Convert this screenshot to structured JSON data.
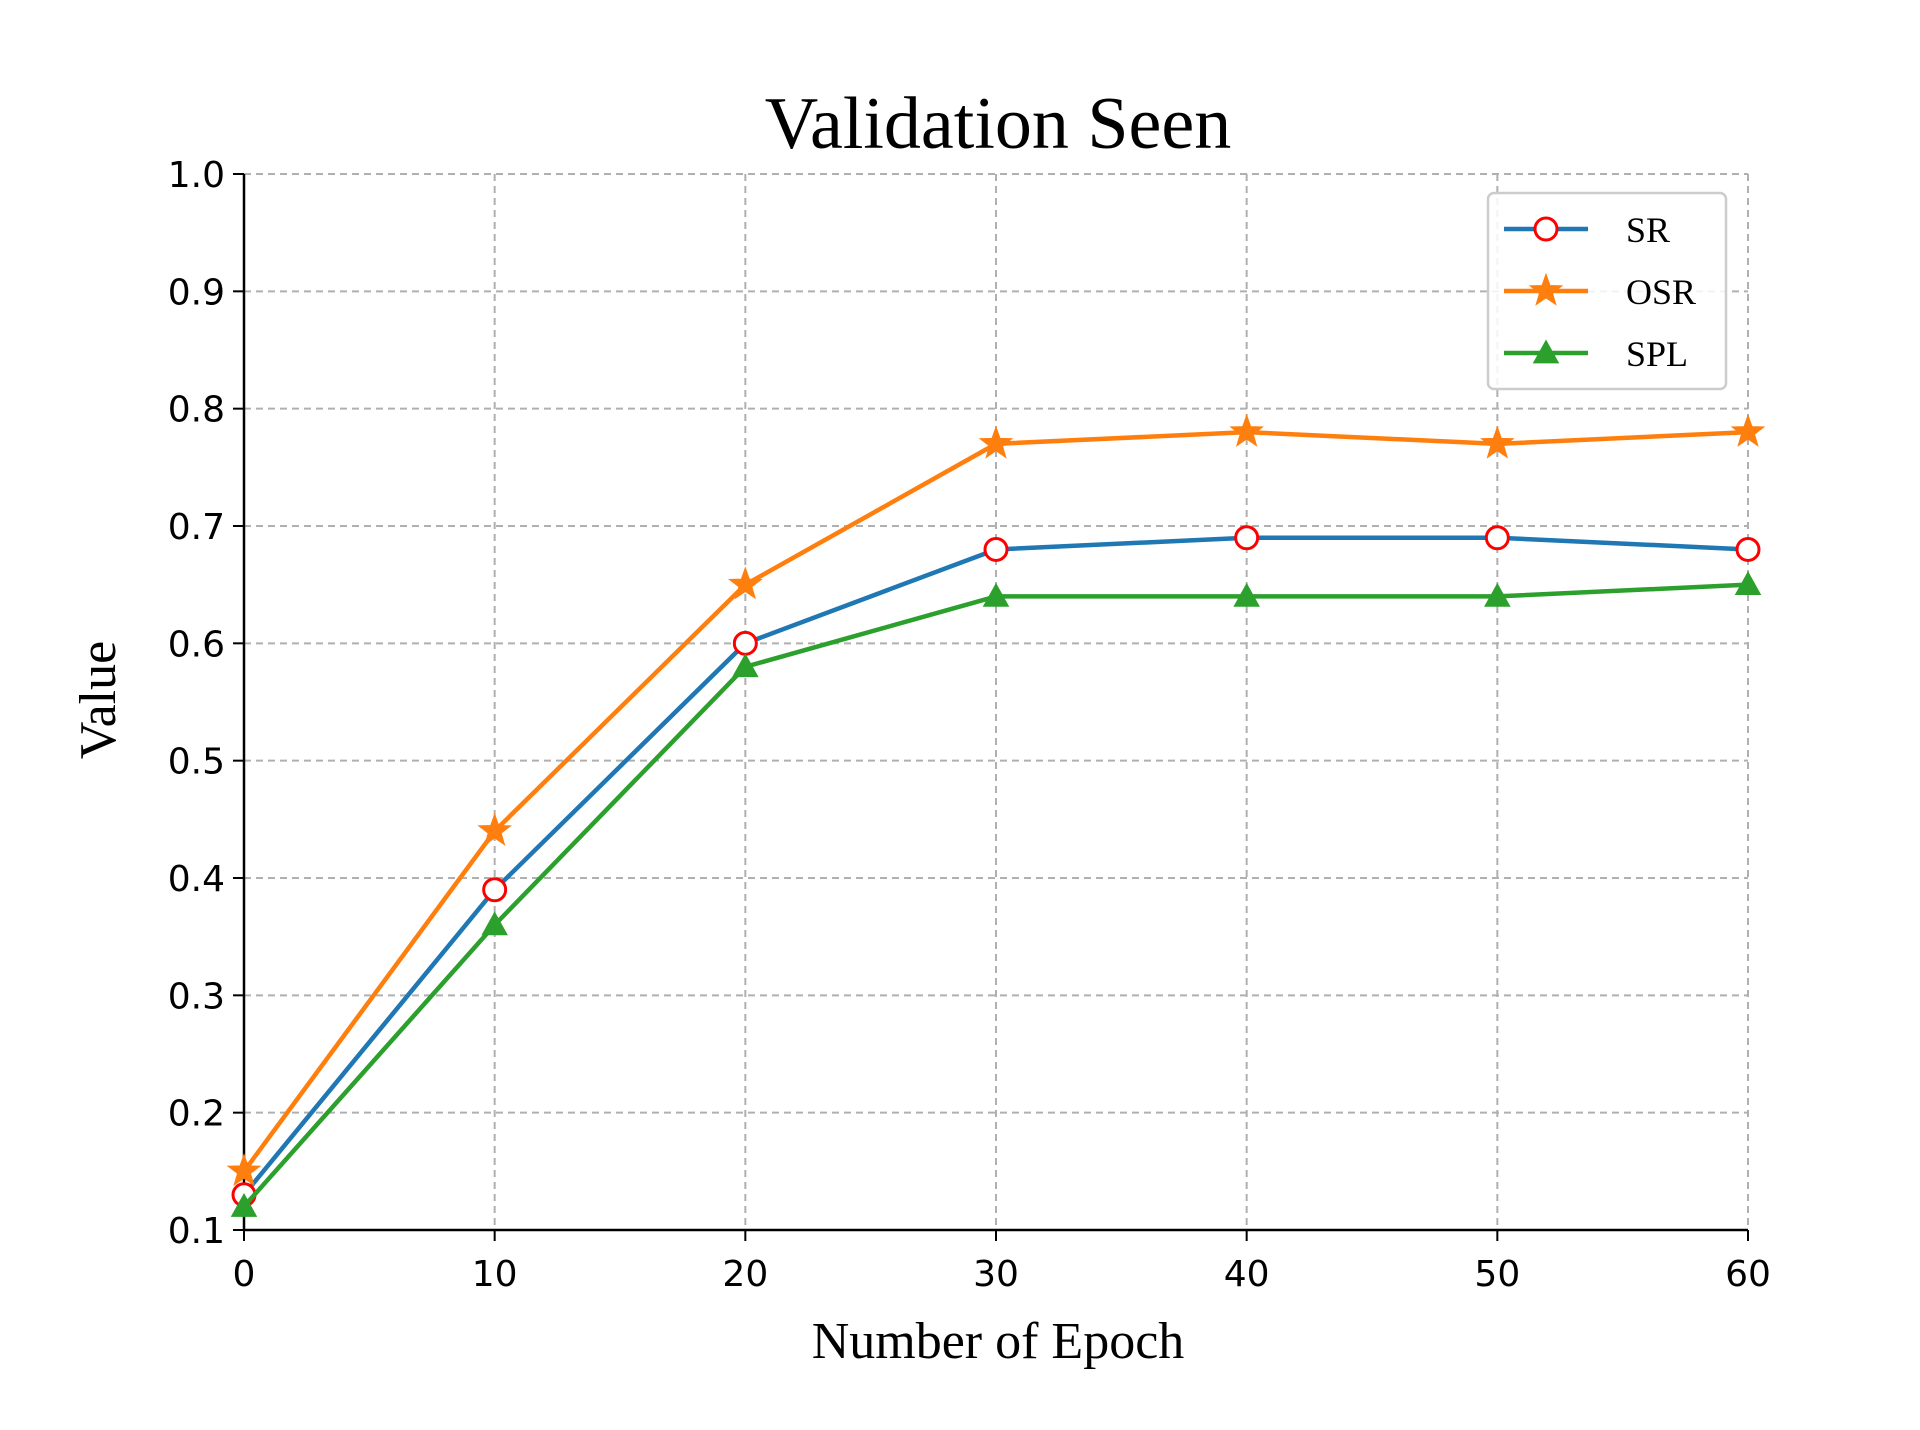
{
  "chart_data": {
    "type": "line",
    "title": "Validation Seen",
    "xlabel": "Number of Epoch",
    "ylabel": "Value",
    "x": [
      0,
      10,
      20,
      30,
      40,
      50,
      60
    ],
    "xlim": [
      0,
      60
    ],
    "ylim": [
      0.1,
      1.0
    ],
    "xticks": [
      "0",
      "10",
      "20",
      "30",
      "40",
      "50",
      "60"
    ],
    "yticks": [
      "0.1",
      "0.2",
      "0.3",
      "0.4",
      "0.5",
      "0.6",
      "0.7",
      "0.8",
      "0.9",
      "1.0"
    ],
    "grid": true,
    "legend_position": "top-right",
    "series": [
      {
        "name": "SR",
        "values": [
          0.13,
          0.39,
          0.6,
          0.68,
          0.69,
          0.69,
          0.68
        ],
        "color": "#1f77b4",
        "marker": "circle",
        "marker_edge": "#ff0000",
        "marker_face": "#ffffff"
      },
      {
        "name": "OSR",
        "values": [
          0.15,
          0.44,
          0.65,
          0.77,
          0.78,
          0.77,
          0.78
        ],
        "color": "#ff7f0e",
        "marker": "star",
        "marker_edge": "#ff7f0e",
        "marker_face": "#ff7f0e"
      },
      {
        "name": "SPL",
        "values": [
          0.12,
          0.36,
          0.58,
          0.64,
          0.64,
          0.64,
          0.65
        ],
        "color": "#2ca02c",
        "marker": "triangle",
        "marker_edge": "#2ca02c",
        "marker_face": "#2ca02c"
      }
    ]
  }
}
